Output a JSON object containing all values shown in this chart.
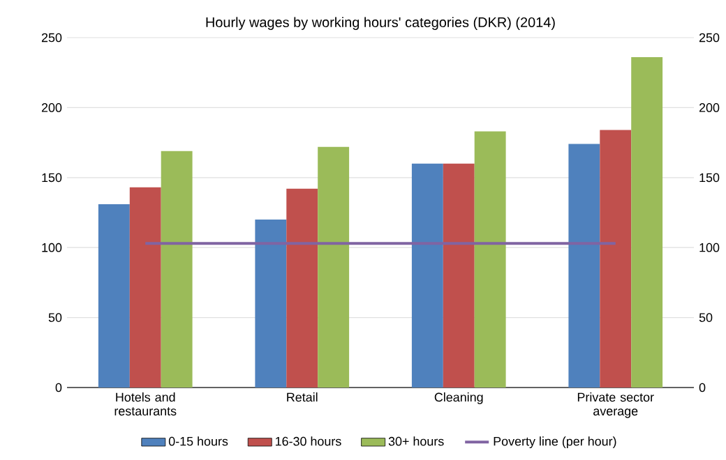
{
  "chart_data": {
    "type": "bar",
    "title": "Hourly wages by working hours' categories (DKR) (2014)",
    "categories": [
      "Hotels and restaurants",
      "Retail",
      "Cleaning",
      "Private sector average"
    ],
    "series": [
      {
        "name": "0-15 hours",
        "color": "#4f81bd",
        "values": [
          131,
          120,
          160,
          174
        ]
      },
      {
        "name": "16-30 hours",
        "color": "#c0504d",
        "values": [
          143,
          142,
          160,
          184
        ]
      },
      {
        "name": "30+ hours",
        "color": "#9bbb59",
        "values": [
          169,
          172,
          183,
          236
        ]
      },
      {
        "name": "Poverty line (per hour)",
        "type": "line",
        "color": "#8064a2",
        "values": [
          103,
          103,
          103,
          103
        ]
      }
    ],
    "ylim": [
      0,
      250
    ],
    "yticks": [
      0,
      50,
      100,
      150,
      200,
      250
    ],
    "y2lim": [
      0,
      250
    ],
    "y2ticks": [
      0,
      50,
      100,
      150,
      200,
      250
    ],
    "grid": "y",
    "legend": "bottom"
  }
}
